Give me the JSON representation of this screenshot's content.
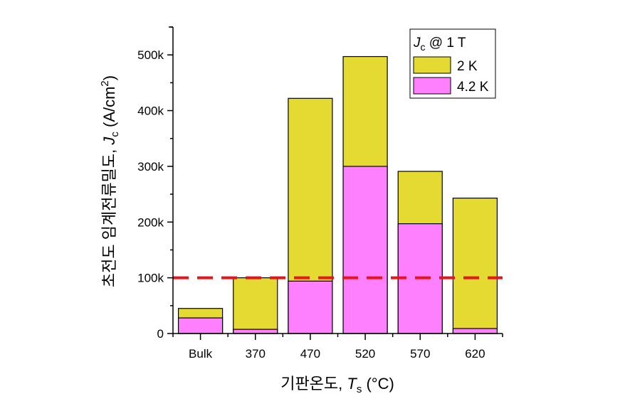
{
  "chart_data": {
    "type": "bar",
    "stacked_overlay": true,
    "title": "",
    "xlabel": "기판온도, T_s (°C)",
    "xlabel_parts": {
      "prefix": "기판온도, ",
      "symbol": "T",
      "sub": "s",
      "suffix": " (°C)"
    },
    "ylabel": "초전도 임계전류밀도, J_c (A/cm^2)",
    "ylabel_parts": {
      "prefix": "초전도 임계전류밀도, ",
      "symbol": "J",
      "sub": "c",
      "suffix": " (A/cm",
      "sup": "2",
      "end": ")"
    },
    "categories": [
      "Bulk",
      "370",
      "470",
      "520",
      "570",
      "620"
    ],
    "series": [
      {
        "name": "2 K",
        "color": "#E5DA32",
        "values": [
          45000,
          100000,
          422000,
          497000,
          291000,
          243000
        ]
      },
      {
        "name": "4.2 K",
        "color": "#FF80FF",
        "values": [
          28000,
          7500,
          94000,
          300000,
          197000,
          9000
        ]
      }
    ],
    "ylim": [
      0,
      550000
    ],
    "yticks": [
      0,
      100000,
      200000,
      300000,
      400000,
      500000
    ],
    "ytick_labels": [
      "0",
      "100k",
      "200k",
      "300k",
      "400k",
      "500k"
    ],
    "reference_line": {
      "y": 100000,
      "color": "#E8141A",
      "style": "dashed"
    },
    "legend": {
      "title": "J_c @ 1 T",
      "title_parts": {
        "symbol": "J",
        "sub": "c",
        "suffix": " @ 1 T"
      },
      "position": "upper right",
      "entries": [
        "2 K",
        "4.2 K"
      ]
    },
    "grid": false
  }
}
